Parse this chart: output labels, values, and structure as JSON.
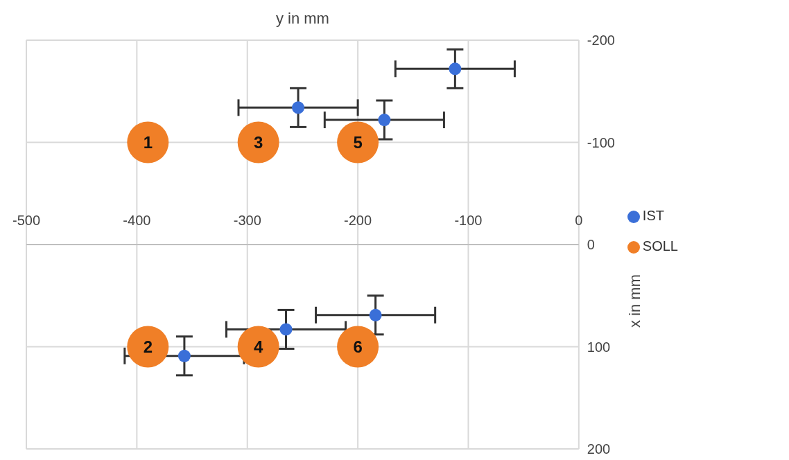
{
  "chart_data": {
    "type": "scatter",
    "xlabel": "y in mm",
    "ylabel": "x in mm",
    "xlim": [
      -500,
      0
    ],
    "xticks": [
      -500,
      -400,
      -300,
      -200,
      -100,
      0
    ],
    "ylim": [
      200,
      -200
    ],
    "yticks": [
      -200,
      -100,
      0,
      100,
      200
    ],
    "grid": true,
    "legend": "right",
    "marker": "circle",
    "series": [
      {
        "name": "IST",
        "color": "#3a6fd8",
        "x": [
          -112,
          -254,
          -176,
          -357,
          -265,
          -184
        ],
        "values": [
          -172,
          -134,
          -122,
          109,
          83,
          69
        ],
        "xerrors": [
          54,
          54,
          54,
          54,
          54,
          54
        ],
        "errors": [
          19,
          19,
          19,
          19,
          19,
          19
        ]
      },
      {
        "name": "SOLL",
        "color": "#f07f27",
        "x": [
          -390,
          -390,
          -290,
          -290,
          -200,
          -200
        ],
        "values": [
          -100,
          100,
          -100,
          100,
          -100,
          100
        ]
      }
    ],
    "annotations": [
      {
        "text": "1",
        "x": -390,
        "y": -100
      },
      {
        "text": "2",
        "x": -390,
        "y": 100
      },
      {
        "text": "3",
        "x": -290,
        "y": -100
      },
      {
        "text": "4",
        "x": -290,
        "y": 100
      },
      {
        "text": "5",
        "x": -200,
        "y": -100
      },
      {
        "text": "6",
        "x": -200,
        "y": 100
      }
    ]
  }
}
